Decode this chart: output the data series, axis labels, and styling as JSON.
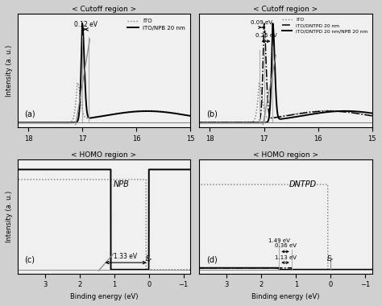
{
  "fig_bg": "#d0d0d0",
  "panel_bg": "#f0f0f0",
  "title_a": "< Cutoff region >",
  "title_b": "< Cutoff region >",
  "title_c": "< HOMO region >",
  "title_d": "< HOMO region >",
  "xlabel": "Binding energy (eV)",
  "ylabel": "Intensity (a. u.)",
  "annotation_a": "0.12 eV",
  "annotation_b_1": "0.09 eV",
  "annotation_b_2": "0.25 eV",
  "annotation_c": "1.33 eV",
  "annotation_d_1": "0.36 eV",
  "annotation_d_2": "1.13 eV",
  "annotation_d_3": "1.49 eV",
  "legend_a": [
    "ITO",
    "ITO/NPB 20 nm"
  ],
  "legend_b": [
    "ITO",
    "ITO/DNTPD 20 nm",
    "ITO/DNTPD 20 nm/NPB 20 nm"
  ],
  "mol_c": "NPB",
  "mol_d": "DNTPD",
  "label_a": "(a)",
  "label_b": "(b)",
  "label_c": "(c)",
  "label_d": "(d)"
}
